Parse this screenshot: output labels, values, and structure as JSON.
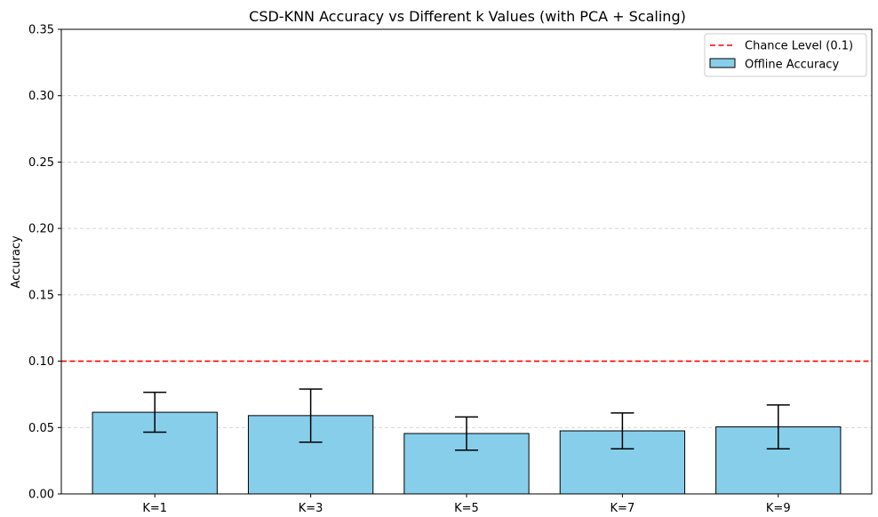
{
  "chart_data": {
    "type": "bar",
    "title": "CSD-KNN Accuracy vs Different k Values (with PCA + Scaling)",
    "xlabel": "",
    "ylabel": "Accuracy",
    "categories": [
      "K=1",
      "K=3",
      "K=5",
      "K=7",
      "K=9"
    ],
    "series": [
      {
        "name": "Offline Accuracy",
        "values": [
          0.0615,
          0.059,
          0.0455,
          0.0475,
          0.0505
        ],
        "errors": [
          0.015,
          0.02,
          0.0125,
          0.0135,
          0.0165
        ],
        "color": "#87CEEB",
        "edge_color": "#000000"
      }
    ],
    "reference_lines": [
      {
        "name": "Chance Level (0.1)",
        "value": 0.1,
        "color": "#ff0000",
        "style": "dashed"
      }
    ],
    "ylim": [
      0,
      0.35
    ],
    "yticks": [
      "0.00",
      "0.05",
      "0.10",
      "0.15",
      "0.20",
      "0.25",
      "0.30",
      "0.35"
    ],
    "grid": "y-dashed",
    "legend_position": "top-right",
    "legend": [
      "Chance Level (0.1)",
      "Offline Accuracy"
    ]
  }
}
